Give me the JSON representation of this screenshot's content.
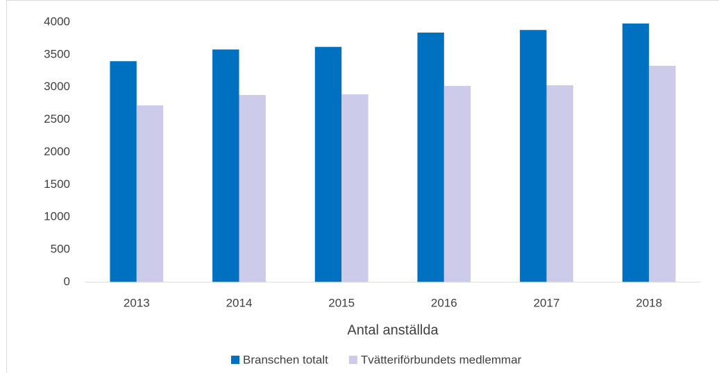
{
  "chart_data": {
    "type": "bar",
    "x_label": "Antal anställda",
    "categories": [
      "2013",
      "2014",
      "2015",
      "2016",
      "2017",
      "2018"
    ],
    "series": [
      {
        "name": "Branschen totalt",
        "color": "#0070c0",
        "values": [
          3400,
          3580,
          3620,
          3840,
          3880,
          3980
        ]
      },
      {
        "name": "Tvätteriförbundets medlemmar",
        "color": "#ccccea",
        "values": [
          2720,
          2880,
          2890,
          3020,
          3030,
          3330
        ]
      }
    ],
    "ylim": [
      0,
      4000
    ],
    "yticks": [
      0,
      500,
      1000,
      1500,
      2000,
      2500,
      3000,
      3500,
      4000
    ],
    "grid": false,
    "legend": "bottom"
  }
}
